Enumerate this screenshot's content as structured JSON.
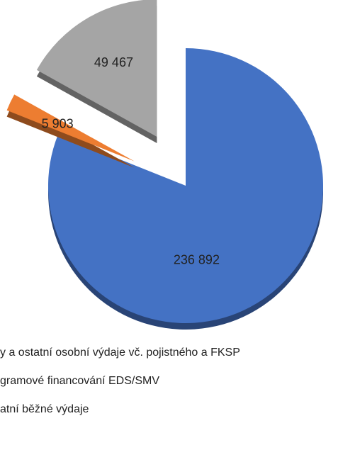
{
  "chart_data": {
    "type": "pie",
    "categories": [
      "y a ostatní osobní výdaje vč. pojistného a FKSP",
      "gramové financování EDS/SMV",
      "atní běžné výdaje"
    ],
    "values": [
      236892,
      5903,
      49467
    ],
    "value_labels": [
      "236 892",
      "5 903",
      "49 467"
    ],
    "colors": [
      "#4472c4",
      "#ed7d31",
      "#a5a5a5"
    ],
    "exploded": [
      false,
      true,
      true
    ]
  }
}
